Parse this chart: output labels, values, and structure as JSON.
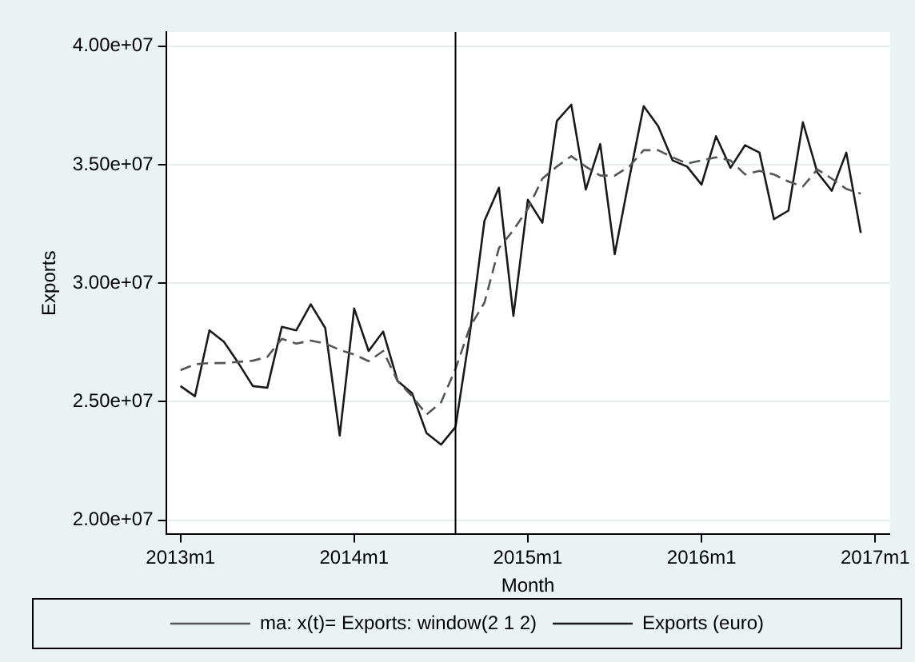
{
  "chart_data": {
    "type": "line",
    "xlabel": "Month",
    "ylabel": "Exports",
    "x": [
      "2013-01",
      "2013-02",
      "2013-03",
      "2013-04",
      "2013-05",
      "2013-06",
      "2013-07",
      "2013-08",
      "2013-09",
      "2013-10",
      "2013-11",
      "2013-12",
      "2014-01",
      "2014-02",
      "2014-03",
      "2014-04",
      "2014-05",
      "2014-06",
      "2014-07",
      "2014-08",
      "2014-09",
      "2014-10",
      "2014-11",
      "2014-12",
      "2015-01",
      "2015-02",
      "2015-03",
      "2015-04",
      "2015-05",
      "2015-06",
      "2015-07",
      "2015-08",
      "2015-09",
      "2015-10",
      "2015-11",
      "2015-12",
      "2016-01",
      "2016-02",
      "2016-03",
      "2016-04",
      "2016-05",
      "2016-06",
      "2016-07",
      "2016-08",
      "2016-09",
      "2016-10",
      "2016-11",
      "2016-12"
    ],
    "xlim": [
      "2012-12",
      "2017-02"
    ],
    "xticks": [
      {
        "value": "2013-01",
        "label": "2013m1"
      },
      {
        "value": "2014-01",
        "label": "2014m1"
      },
      {
        "value": "2015-01",
        "label": "2015m1"
      },
      {
        "value": "2016-01",
        "label": "2016m1"
      },
      {
        "value": "2017-01",
        "label": "2017m1"
      }
    ],
    "ylim": [
      19400000,
      40600000
    ],
    "yticks": [
      {
        "value": 20000000,
        "label": "2.00e+07"
      },
      {
        "value": 25000000,
        "label": "2.50e+07"
      },
      {
        "value": 30000000,
        "label": "3.00e+07"
      },
      {
        "value": 35000000,
        "label": "3.50e+07"
      },
      {
        "value": 40000000,
        "label": "4.00e+07"
      }
    ],
    "grid": "y",
    "legend": "bottom",
    "marker": "none",
    "ref_lines": [
      {
        "axis": "x",
        "value": "2014-08",
        "color": "#000000"
      }
    ],
    "series": [
      {
        "name": "ma: x(t)= Exports: window(2 1 2)",
        "color": "#555555",
        "line_style": "dashed",
        "values": [
          26330000,
          26580000,
          26630000,
          26630000,
          26680000,
          26730000,
          26890000,
          27650000,
          27450000,
          27580000,
          27450000,
          27190000,
          26990000,
          26710000,
          27140000,
          25870000,
          25230000,
          24460000,
          24970000,
          26380000,
          28160000,
          29180000,
          31480000,
          32240000,
          33140000,
          34410000,
          34920000,
          35360000,
          34920000,
          34540000,
          34540000,
          34920000,
          35610000,
          35610000,
          35310000,
          35050000,
          35180000,
          35310000,
          35180000,
          34590000,
          34740000,
          34590000,
          34290000,
          34080000,
          34800000,
          34410000,
          33980000,
          33780000
        ]
      },
      {
        "name": "Exports (euro)",
        "color": "#1a1a1a",
        "line_style": "solid",
        "values": [
          25660000,
          25230000,
          28010000,
          27530000,
          26630000,
          25660000,
          25590000,
          28160000,
          28010000,
          29110000,
          28110000,
          23570000,
          28930000,
          27140000,
          27960000,
          25870000,
          25360000,
          23670000,
          23190000,
          23930000,
          27910000,
          32630000,
          34030000,
          28620000,
          33520000,
          32550000,
          36840000,
          37530000,
          33950000,
          35870000,
          31220000,
          34410000,
          37470000,
          36630000,
          35180000,
          34920000,
          34160000,
          36200000,
          34870000,
          35820000,
          35510000,
          32700000,
          33060000,
          36790000,
          34670000,
          33900000,
          35510000,
          32120000
        ]
      }
    ]
  }
}
